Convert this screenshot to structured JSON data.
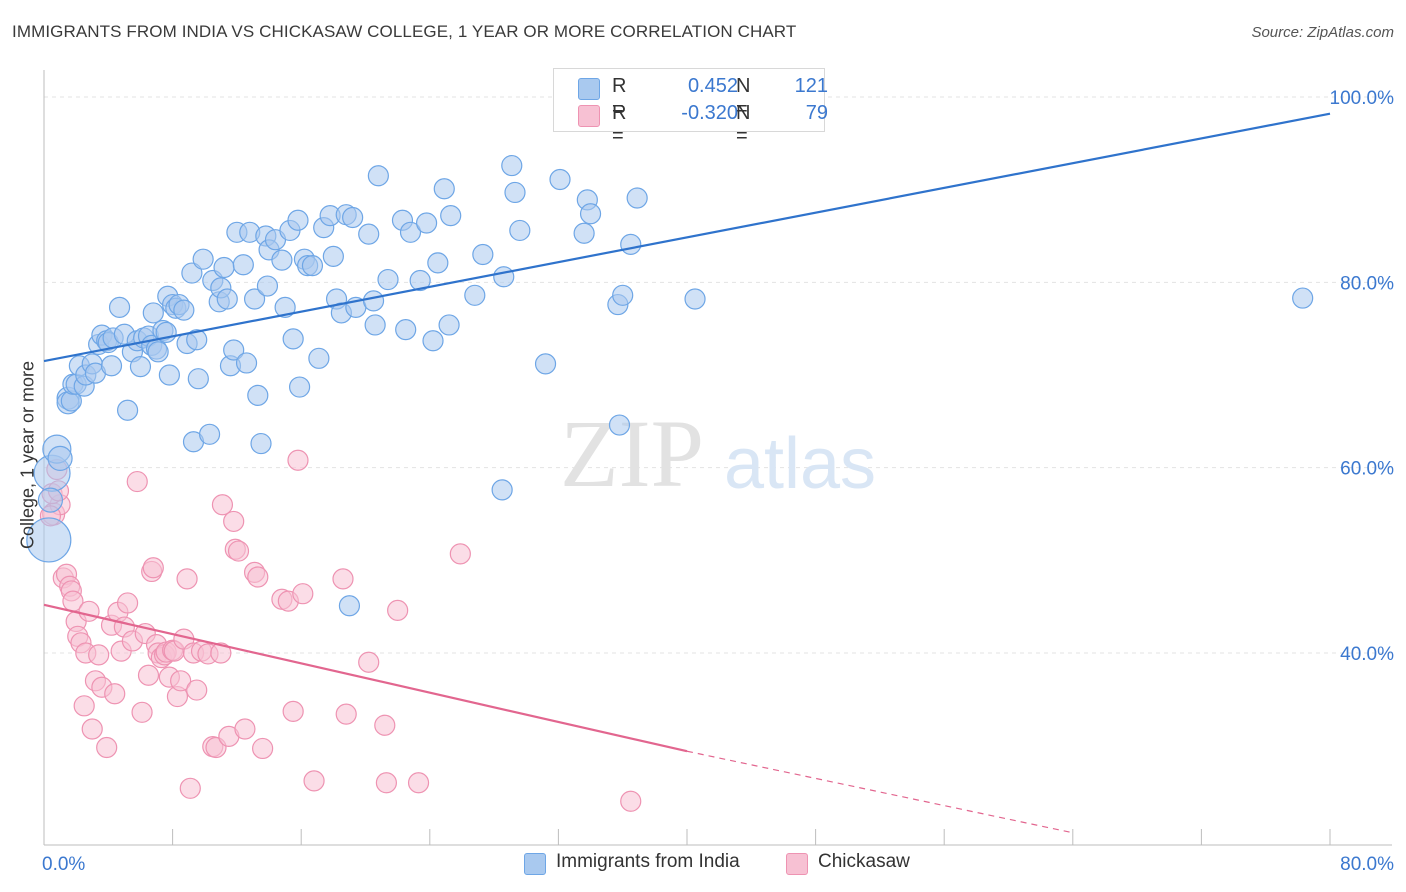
{
  "title": "IMMIGRANTS FROM INDIA VS CHICKASAW COLLEGE, 1 YEAR OR MORE CORRELATION CHART",
  "source": "Source: ZipAtlas.com",
  "watermark": {
    "zip": "ZIP",
    "atlas": "atlas"
  },
  "legend": {
    "rows": [
      {
        "r_label": "R =",
        "r_value": "0.452",
        "n_label": "N =",
        "n_value": "121",
        "color": "#6ea6e6"
      },
      {
        "r_label": "R =",
        "r_value": "-0.320",
        "n_label": "N =",
        "n_value": "79",
        "color": "#f08fb0"
      }
    ]
  },
  "bottom_legend": {
    "india": "Immigrants from India",
    "chickasaw": "Chickasaw"
  },
  "colors": {
    "india_fill": "#a9c9ef",
    "india_stroke": "#6ea6e6",
    "india_line": "#2f73cc",
    "chick_fill": "#f7c1d3",
    "chick_stroke": "#ee93b2",
    "chick_line": "#e2668f",
    "value_text": "#3b78cf",
    "grid": "#e3e3e3"
  },
  "chart_data": {
    "type": "scatter",
    "title": "IMMIGRANTS FROM INDIA VS CHICKASAW COLLEGE, 1 YEAR OR MORE CORRELATION CHART",
    "xlabel": "",
    "ylabel": "College, 1 year or more",
    "xlim": [
      0,
      80
    ],
    "ylim": [
      20,
      100
    ],
    "x_tick_labels": [
      "0.0%",
      "80.0%"
    ],
    "y_tick_labels": [
      "40.0%",
      "60.0%",
      "80.0%",
      "100.0%"
    ],
    "y_ticks": [
      40,
      60,
      80,
      100
    ],
    "grid": true,
    "legend_position": "top-center",
    "series": [
      {
        "name": "Immigrants from India",
        "r": 0.452,
        "n": 121,
        "trend": {
          "x": [
            0,
            80
          ],
          "y": [
            71.5,
            98.2
          ]
        },
        "points": [
          [
            0.3,
            52.2,
            22
          ],
          [
            0.5,
            59.4,
            18
          ],
          [
            0.8,
            62.0,
            14
          ],
          [
            1.0,
            61.0,
            12
          ],
          [
            1.5,
            67.5,
            11
          ],
          [
            1.5,
            67.0,
            11
          ],
          [
            1.7,
            67.2,
            10
          ],
          [
            1.8,
            69.0,
            10
          ],
          [
            2.0,
            69.0,
            10
          ],
          [
            2.2,
            71.0,
            10
          ],
          [
            2.5,
            68.8,
            10
          ],
          [
            2.6,
            70.0,
            10
          ],
          [
            3.0,
            71.2,
            10
          ],
          [
            3.2,
            70.2,
            10
          ],
          [
            3.4,
            73.3,
            10
          ],
          [
            3.6,
            74.3,
            10
          ],
          [
            3.9,
            73.7,
            10
          ],
          [
            4.0,
            73.5,
            10
          ],
          [
            4.2,
            71.0,
            10
          ],
          [
            4.3,
            74.0,
            10
          ],
          [
            4.7,
            77.3,
            10
          ],
          [
            5.0,
            74.4,
            10
          ],
          [
            5.2,
            66.2,
            10
          ],
          [
            5.5,
            72.5,
            10
          ],
          [
            5.8,
            73.7,
            10
          ],
          [
            6.0,
            70.9,
            10
          ],
          [
            6.2,
            74.0,
            10
          ],
          [
            6.5,
            74.2,
            10
          ],
          [
            6.7,
            73.2,
            10
          ],
          [
            6.8,
            76.7,
            10
          ],
          [
            7.0,
            72.8,
            10
          ],
          [
            7.1,
            72.5,
            10
          ],
          [
            7.4,
            74.8,
            10
          ],
          [
            7.6,
            74.6,
            10
          ],
          [
            7.7,
            78.5,
            10
          ],
          [
            7.8,
            70.0,
            10
          ],
          [
            8.0,
            77.6,
            10
          ],
          [
            8.2,
            77.2,
            10
          ],
          [
            8.4,
            77.6,
            10
          ],
          [
            8.7,
            77.0,
            10
          ],
          [
            8.9,
            73.4,
            10
          ],
          [
            9.2,
            81.0,
            10
          ],
          [
            9.3,
            62.8,
            10
          ],
          [
            9.5,
            73.8,
            10
          ],
          [
            9.6,
            69.6,
            10
          ],
          [
            9.9,
            82.5,
            10
          ],
          [
            10.3,
            63.6,
            10
          ],
          [
            10.5,
            80.2,
            10
          ],
          [
            10.9,
            77.9,
            10
          ],
          [
            11.0,
            79.4,
            10
          ],
          [
            11.2,
            81.6,
            10
          ],
          [
            11.4,
            78.2,
            10
          ],
          [
            11.6,
            71.0,
            10
          ],
          [
            11.8,
            72.7,
            10
          ],
          [
            12.4,
            81.9,
            10
          ],
          [
            12.0,
            85.4,
            10
          ],
          [
            12.6,
            71.3,
            10
          ],
          [
            12.8,
            85.4,
            10
          ],
          [
            13.1,
            78.2,
            10
          ],
          [
            13.3,
            67.8,
            10
          ],
          [
            13.5,
            62.6,
            10
          ],
          [
            13.8,
            85.0,
            10
          ],
          [
            13.9,
            79.6,
            10
          ],
          [
            14.0,
            83.5,
            10
          ],
          [
            14.4,
            84.6,
            10
          ],
          [
            14.8,
            82.4,
            10
          ],
          [
            15.0,
            77.3,
            10
          ],
          [
            15.3,
            85.6,
            10
          ],
          [
            15.5,
            73.9,
            10
          ],
          [
            15.8,
            86.7,
            10
          ],
          [
            15.9,
            68.7,
            10
          ],
          [
            16.2,
            82.5,
            10
          ],
          [
            16.4,
            81.8,
            10
          ],
          [
            16.7,
            81.8,
            10
          ],
          [
            17.1,
            71.8,
            10
          ],
          [
            17.4,
            85.9,
            10
          ],
          [
            17.8,
            87.2,
            10
          ],
          [
            18.0,
            82.8,
            10
          ],
          [
            18.2,
            78.2,
            10
          ],
          [
            18.5,
            76.7,
            10
          ],
          [
            18.8,
            87.3,
            10
          ],
          [
            19.0,
            45.1,
            10
          ],
          [
            19.2,
            87.0,
            10
          ],
          [
            19.4,
            77.3,
            10
          ],
          [
            20.2,
            85.2,
            10
          ],
          [
            20.5,
            78.0,
            10
          ],
          [
            20.6,
            75.4,
            10
          ],
          [
            20.8,
            91.5,
            10
          ],
          [
            21.4,
            80.3,
            10
          ],
          [
            22.3,
            86.7,
            10
          ],
          [
            22.5,
            74.9,
            10
          ],
          [
            22.8,
            85.4,
            10
          ],
          [
            23.4,
            80.2,
            10
          ],
          [
            23.8,
            86.4,
            10
          ],
          [
            24.2,
            73.7,
            10
          ],
          [
            24.5,
            82.1,
            10
          ],
          [
            24.9,
            90.1,
            10
          ],
          [
            25.2,
            75.4,
            10
          ],
          [
            25.3,
            87.2,
            10
          ],
          [
            26.8,
            78.6,
            10
          ],
          [
            27.3,
            83.0,
            10
          ],
          [
            28.5,
            57.6,
            10
          ],
          [
            28.6,
            80.6,
            10
          ],
          [
            29.1,
            92.6,
            10
          ],
          [
            29.3,
            89.7,
            10
          ],
          [
            29.6,
            85.6,
            10
          ],
          [
            31.2,
            71.2,
            10
          ],
          [
            32.1,
            91.1,
            10
          ],
          [
            33.6,
            85.3,
            10
          ],
          [
            33.8,
            88.9,
            10
          ],
          [
            34.0,
            87.4,
            10
          ],
          [
            35.8,
            64.6,
            10
          ],
          [
            35.7,
            77.6,
            10
          ],
          [
            36.0,
            78.6,
            10
          ],
          [
            36.5,
            84.1,
            10
          ],
          [
            36.9,
            89.1,
            10
          ],
          [
            40.5,
            78.2,
            10
          ],
          [
            78.3,
            78.3,
            10
          ],
          [
            0.4,
            56.5,
            12
          ]
        ]
      },
      {
        "name": "Chickasaw",
        "r": -0.32,
        "n": 79,
        "trend": {
          "x": [
            0,
            40
          ],
          "y": [
            45.2,
            29.4
          ]
        },
        "trend_dashed": {
          "x": [
            40,
            64
          ],
          "y": [
            29.4,
            20.6
          ]
        },
        "points": [
          [
            0.6,
            55.0,
            11
          ],
          [
            0.8,
            59.8,
            10
          ],
          [
            1.0,
            56.0,
            10
          ],
          [
            1.2,
            48.1,
            10
          ],
          [
            1.4,
            48.5,
            10
          ],
          [
            1.6,
            47.2,
            10
          ],
          [
            1.7,
            46.7,
            10
          ],
          [
            1.8,
            45.6,
            10
          ],
          [
            2.0,
            43.4,
            10
          ],
          [
            2.1,
            41.8,
            10
          ],
          [
            2.3,
            41.1,
            10
          ],
          [
            2.5,
            34.3,
            10
          ],
          [
            2.6,
            40.0,
            10
          ],
          [
            2.8,
            44.5,
            10
          ],
          [
            3.0,
            31.8,
            10
          ],
          [
            3.2,
            37.0,
            10
          ],
          [
            3.4,
            39.8,
            10
          ],
          [
            3.6,
            36.3,
            10
          ],
          [
            3.9,
            29.8,
            10
          ],
          [
            4.2,
            43.0,
            10
          ],
          [
            4.4,
            35.6,
            10
          ],
          [
            4.6,
            44.4,
            10
          ],
          [
            4.8,
            40.2,
            10
          ],
          [
            5.0,
            42.8,
            10
          ],
          [
            5.2,
            45.4,
            10
          ],
          [
            5.5,
            41.3,
            10
          ],
          [
            5.8,
            58.5,
            10
          ],
          [
            6.1,
            33.6,
            10
          ],
          [
            6.3,
            42.1,
            10
          ],
          [
            6.5,
            37.6,
            10
          ],
          [
            6.7,
            48.8,
            10
          ],
          [
            6.8,
            49.2,
            10
          ],
          [
            7.0,
            40.9,
            10
          ],
          [
            7.1,
            40.0,
            10
          ],
          [
            7.3,
            39.5,
            10
          ],
          [
            7.5,
            39.8,
            10
          ],
          [
            7.6,
            40.1,
            10
          ],
          [
            7.8,
            37.4,
            10
          ],
          [
            8.0,
            40.3,
            10
          ],
          [
            8.1,
            40.2,
            10
          ],
          [
            8.3,
            35.3,
            10
          ],
          [
            8.5,
            37.0,
            10
          ],
          [
            8.7,
            41.5,
            10
          ],
          [
            8.9,
            48.0,
            10
          ],
          [
            9.1,
            25.4,
            10
          ],
          [
            9.3,
            40.0,
            10
          ],
          [
            9.5,
            36.0,
            10
          ],
          [
            9.8,
            40.2,
            10
          ],
          [
            10.2,
            39.9,
            10
          ],
          [
            10.5,
            29.9,
            10
          ],
          [
            10.7,
            29.8,
            10
          ],
          [
            11.0,
            40.0,
            10
          ],
          [
            11.1,
            56.0,
            10
          ],
          [
            11.5,
            31.0,
            10
          ],
          [
            11.8,
            54.2,
            10
          ],
          [
            11.9,
            51.2,
            10
          ],
          [
            12.1,
            51.0,
            10
          ],
          [
            12.5,
            31.8,
            10
          ],
          [
            13.1,
            48.7,
            10
          ],
          [
            13.3,
            48.2,
            10
          ],
          [
            13.6,
            29.7,
            10
          ],
          [
            14.8,
            45.8,
            10
          ],
          [
            15.2,
            45.6,
            10
          ],
          [
            15.5,
            33.7,
            10
          ],
          [
            15.8,
            60.8,
            10
          ],
          [
            16.1,
            46.4,
            10
          ],
          [
            16.8,
            26.2,
            10
          ],
          [
            18.6,
            48.0,
            10
          ],
          [
            18.8,
            33.4,
            10
          ],
          [
            20.2,
            39.0,
            10
          ],
          [
            21.2,
            32.2,
            10
          ],
          [
            21.3,
            26.0,
            10
          ],
          [
            22.0,
            44.6,
            10
          ],
          [
            23.3,
            26.0,
            10
          ],
          [
            25.9,
            50.7,
            10
          ],
          [
            36.5,
            24.0,
            10
          ],
          [
            0.5,
            57.2,
            10
          ],
          [
            0.9,
            57.5,
            10
          ],
          [
            0.4,
            54.8,
            10
          ]
        ]
      }
    ]
  }
}
